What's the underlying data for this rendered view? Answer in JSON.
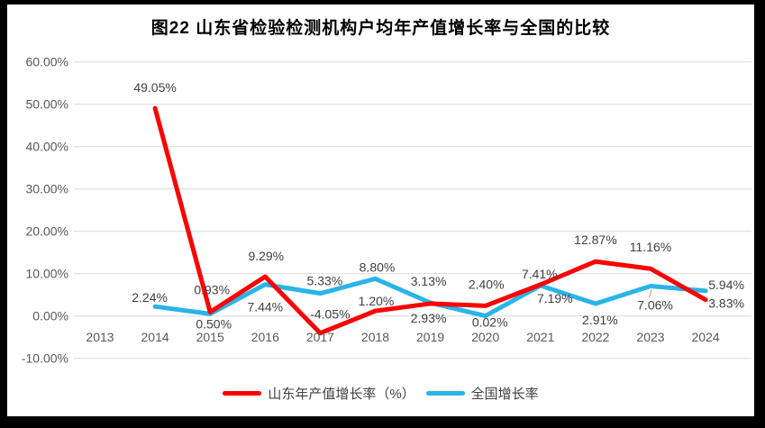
{
  "title": "图22 山东省检验检测机构户均年产值增长率与全国的比较",
  "chart_data": {
    "type": "line",
    "title": "图22 山东省检验检测机构户均年产值增长率与全国的比较",
    "categories": [
      "2013",
      "2014",
      "2015",
      "2016",
      "2017",
      "2018",
      "2019",
      "2020",
      "2021",
      "2022",
      "2023",
      "2024"
    ],
    "ylim": [
      -10,
      60
    ],
    "ytick_step": 10,
    "ytick_values": [
      60,
      50,
      40,
      30,
      20,
      10,
      0,
      -10
    ],
    "ytick_labels": [
      "60.00%",
      "50.00%",
      "40.00%",
      "30.00%",
      "20.00%",
      "10.00%",
      "0.00%",
      "-10.00%"
    ],
    "grid": true,
    "legend_position": "bottom",
    "label_format": "0.00%",
    "series": [
      {
        "name": "山东年产值增长率（%）",
        "color": "#fe0000",
        "values": [
          null,
          49.05,
          0.93,
          9.29,
          -4.05,
          1.2,
          2.93,
          2.4,
          7.41,
          12.87,
          11.16,
          3.83
        ],
        "label_offsets": [
          [
            0,
            0
          ],
          [
            0,
            -23
          ],
          [
            2,
            -25
          ],
          [
            1,
            -23
          ],
          [
            11,
            -21
          ],
          [
            1,
            -11
          ],
          [
            -2,
            16
          ],
          [
            1,
            -24
          ],
          [
            -1,
            -12
          ],
          [
            0,
            -24
          ],
          [
            0,
            -24
          ],
          [
            23,
            4
          ]
        ]
      },
      {
        "name": "全国增长率",
        "color": "#2ab4e8",
        "values": [
          null,
          2.24,
          0.5,
          7.44,
          5.33,
          8.8,
          3.13,
          0.02,
          7.19,
          2.91,
          7.06,
          5.94
        ],
        "label_offsets": [
          [
            0,
            0
          ],
          [
            -6,
            -10
          ],
          [
            4,
            11
          ],
          [
            0,
            25
          ],
          [
            5,
            -14
          ],
          [
            2,
            -13
          ],
          [
            -2,
            -24
          ],
          [
            5,
            7
          ],
          [
            16,
            14
          ],
          [
            5,
            18
          ],
          [
            5,
            21
          ],
          [
            23,
            -7
          ]
        ]
      }
    ],
    "leader_line": {
      "series_index": 1,
      "point_index": 10
    }
  },
  "colors": {
    "frame": "#000000",
    "background": "#ffffff",
    "gridline": "#d9d9d9",
    "axis_text": "#595959",
    "data_label_text": "#404040",
    "leader_line": "#9b9b9b",
    "series_shandong": "#fe0000",
    "series_national": "#2ab4e8"
  }
}
